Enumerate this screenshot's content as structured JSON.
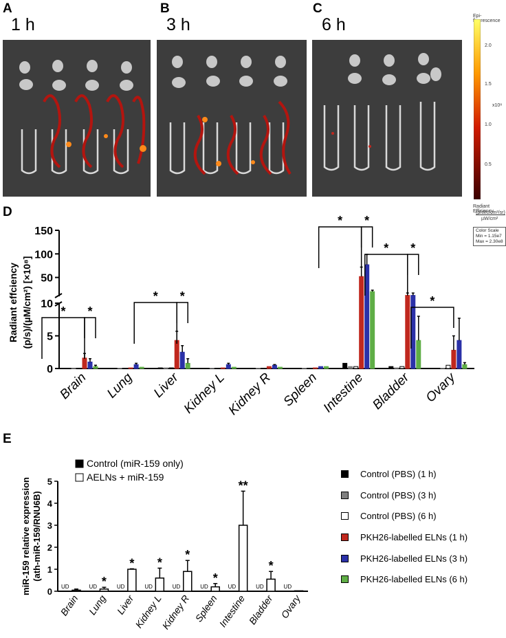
{
  "panels": {
    "A": {
      "letter": "A",
      "time": "1 h"
    },
    "B": {
      "letter": "B",
      "time": "3 h"
    },
    "C": {
      "letter": "C",
      "time": "6 h"
    },
    "D": {
      "letter": "D"
    },
    "E": {
      "letter": "E"
    }
  },
  "colorbar": {
    "title": "Epi-fluorescence",
    "ticks": [
      "2.0",
      "1.5",
      "1.0",
      "0.5"
    ],
    "multiplier": "x10⁸",
    "units_line1": "Radiant Efficiency",
    "units_line2": "(p/sec/cm²/sr)",
    "units_line3": "µW/cm²",
    "scale_title": "Color Scale",
    "scale_min": "Min = 1.15e7",
    "scale_max": "Max = 2.30e8"
  },
  "colors": {
    "control_1h": "#000000",
    "control_3h": "#7f7f7f",
    "control_6h": "#ffffff",
    "elns_1h": "#c0281e",
    "elns_3h": "#2b31a8",
    "elns_6h": "#5fae46"
  },
  "legend_D": [
    {
      "label": "Control (PBS) (1 h)",
      "color": "#000000"
    },
    {
      "label": "Control (PBS) (3 h)",
      "color": "#7f7f7f"
    },
    {
      "label": "Control (PBS) (6 h)",
      "color": "#ffffff"
    },
    {
      "label": "PKH26-labelled ELNs (1 h)",
      "color": "#c0281e"
    },
    {
      "label": "PKH26-labelled ELNs (3 h)",
      "color": "#2b31a8"
    },
    {
      "label": "PKH26-labelled ELNs (6 h)",
      "color": "#5fae46"
    }
  ],
  "chart_data": [
    {
      "type": "bar",
      "panel": "D",
      "ylabel_line1": "Radiant  effciency",
      "ylabel_line2": "(p/s)/(µM/cm²) [×10⁸]",
      "categories": [
        "Brain",
        "Lung",
        "Liver",
        "Kidney L",
        "Kidney R",
        "Spleen",
        "Intestine",
        "Bladder",
        "Ovary"
      ],
      "y_axis_break": {
        "lower": [
          0,
          10
        ],
        "upper": [
          10,
          150
        ]
      },
      "yticks_lower": [
        "0",
        "5",
        "10"
      ],
      "yticks_upper": [
        "50",
        "100",
        "150"
      ],
      "series": [
        {
          "name": "Control (PBS) (1 h)",
          "values": [
            0.02,
            0.05,
            0.1,
            0.05,
            0.05,
            0.05,
            0.8,
            0.3,
            0.05
          ],
          "errors": [
            0,
            0,
            0,
            0,
            0,
            0,
            0,
            0,
            0
          ]
        },
        {
          "name": "Control (PBS) (3 h)",
          "values": [
            0.02,
            0.05,
            0.1,
            0.05,
            0.05,
            0.05,
            0.3,
            0.1,
            0.05
          ],
          "errors": [
            0,
            0,
            0,
            0,
            0,
            0,
            0,
            0,
            0
          ]
        },
        {
          "name": "Control (PBS) (6 h)",
          "values": [
            0.02,
            0.05,
            0.1,
            0.05,
            0.05,
            0.05,
            0.3,
            0.3,
            0.5
          ],
          "errors": [
            0,
            0,
            0,
            0,
            0,
            0,
            0,
            0,
            0
          ]
        },
        {
          "name": "PKH26-labelled ELNs (1 h)",
          "values": [
            1.6,
            0.1,
            4.3,
            0.1,
            0.3,
            0.1,
            52,
            12,
            2.8
          ],
          "errors": [
            0.7,
            0,
            1.4,
            0,
            0,
            0,
            20,
            5,
            2.2
          ]
        },
        {
          "name": "PKH26-labelled ELNs (3 h)",
          "values": [
            1.0,
            0.6,
            2.5,
            0.6,
            0.5,
            0.3,
            77,
            12,
            4.3
          ],
          "errors": [
            0.5,
            0.2,
            1.0,
            0.2,
            0.1,
            0,
            22,
            5,
            3.4
          ]
        },
        {
          "name": "PKH26-labelled ELNs (6 h)",
          "values": [
            0.3,
            0.2,
            0.8,
            0.2,
            0.2,
            0.3,
            20,
            4.3,
            0.6
          ],
          "errors": [
            0.2,
            0,
            0.7,
            0,
            0,
            0,
            3,
            3.7,
            0.3
          ]
        }
      ],
      "significance": [
        {
          "category": "Brain",
          "pairs": [
            "1h",
            "3h"
          ],
          "label": "*"
        },
        {
          "category": "Brain",
          "pairs": [
            "3h",
            "6h"
          ],
          "label": "*"
        },
        {
          "category": "Liver",
          "pairs": [
            "1h",
            "3h"
          ],
          "label": "*"
        },
        {
          "category": "Liver",
          "pairs": [
            "3h",
            "6h"
          ],
          "label": "*"
        },
        {
          "category": "Intestine",
          "pairs": [
            "1h",
            "3h"
          ],
          "label": "*"
        },
        {
          "category": "Intestine",
          "pairs": [
            "3h",
            "6h"
          ],
          "label": "*"
        },
        {
          "category": "Bladder",
          "pairs": [
            "1h",
            "3h"
          ],
          "label": "*"
        },
        {
          "category": "Bladder",
          "pairs": [
            "3h",
            "6h"
          ],
          "label": "*"
        },
        {
          "category": "Ovary",
          "pairs": [
            "1h",
            "3h"
          ],
          "label": "*"
        }
      ]
    },
    {
      "type": "bar",
      "panel": "E",
      "ylabel_line1": "miR-159 relative expression",
      "ylabel_line2": "(ath-miR-159/RNU6B)",
      "categories": [
        "Brain",
        "Lung",
        "Liver",
        "Kidney L",
        "Kidney R",
        "Spleen",
        "Intestine",
        "Bladder",
        "Ovary"
      ],
      "ylim": [
        0,
        5
      ],
      "yticks": [
        "0",
        "1",
        "2",
        "3",
        "4",
        "5"
      ],
      "series": [
        {
          "name": "Control (miR-159 only)",
          "color": "#000000",
          "values": [
            0,
            0,
            0,
            0,
            0,
            0,
            0,
            0,
            0
          ],
          "labels": [
            "UD",
            "UD",
            "UD",
            "UD",
            "UD",
            "UD",
            "UD",
            "UD",
            "UD"
          ]
        },
        {
          "name": "AELNs + miR-159",
          "color": "#ffffff",
          "values": [
            0.05,
            0.1,
            1.0,
            0.6,
            0.9,
            0.2,
            3.0,
            0.55,
            0.02
          ],
          "errors": [
            0.05,
            0.08,
            0.02,
            0.45,
            0.5,
            0.15,
            1.55,
            0.35,
            0
          ],
          "stars": [
            "",
            "*",
            "*",
            "*",
            "*",
            "*",
            "**",
            "*",
            ""
          ]
        }
      ]
    }
  ]
}
